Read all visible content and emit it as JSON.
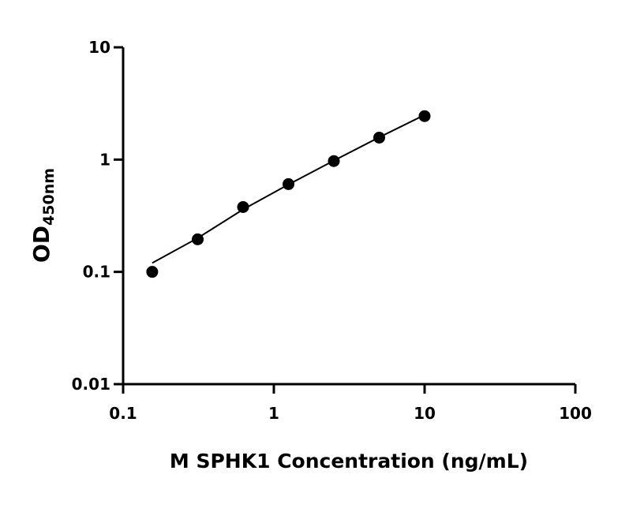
{
  "chart_data": {
    "type": "scatter",
    "x_label": "M SPHK1 Concentration (ng/mL)",
    "y_label": {
      "text": "OD",
      "subscript": "450nm"
    },
    "x": [
      0.156,
      0.3125,
      0.625,
      1.25,
      2.5,
      5,
      10
    ],
    "series": [
      {
        "color": "#000000",
        "values": [
          0.1,
          0.195,
          0.378,
          0.605,
          0.97,
          1.57,
          2.44
        ]
      }
    ],
    "fit_line": {
      "color": "#000000",
      "x": [
        0.156,
        0.3125,
        0.625,
        1.25,
        2.5,
        5,
        10
      ],
      "values": [
        0.12,
        0.2,
        0.36,
        0.6,
        0.98,
        1.58,
        2.5
      ]
    },
    "xscale": "log",
    "yscale": "log",
    "xlim": [
      0.1,
      100
    ],
    "ylim": [
      0.01,
      10
    ],
    "xticks": [
      0.1,
      1,
      10,
      100
    ],
    "yticks": [
      0.01,
      0.1,
      1,
      10
    ]
  }
}
